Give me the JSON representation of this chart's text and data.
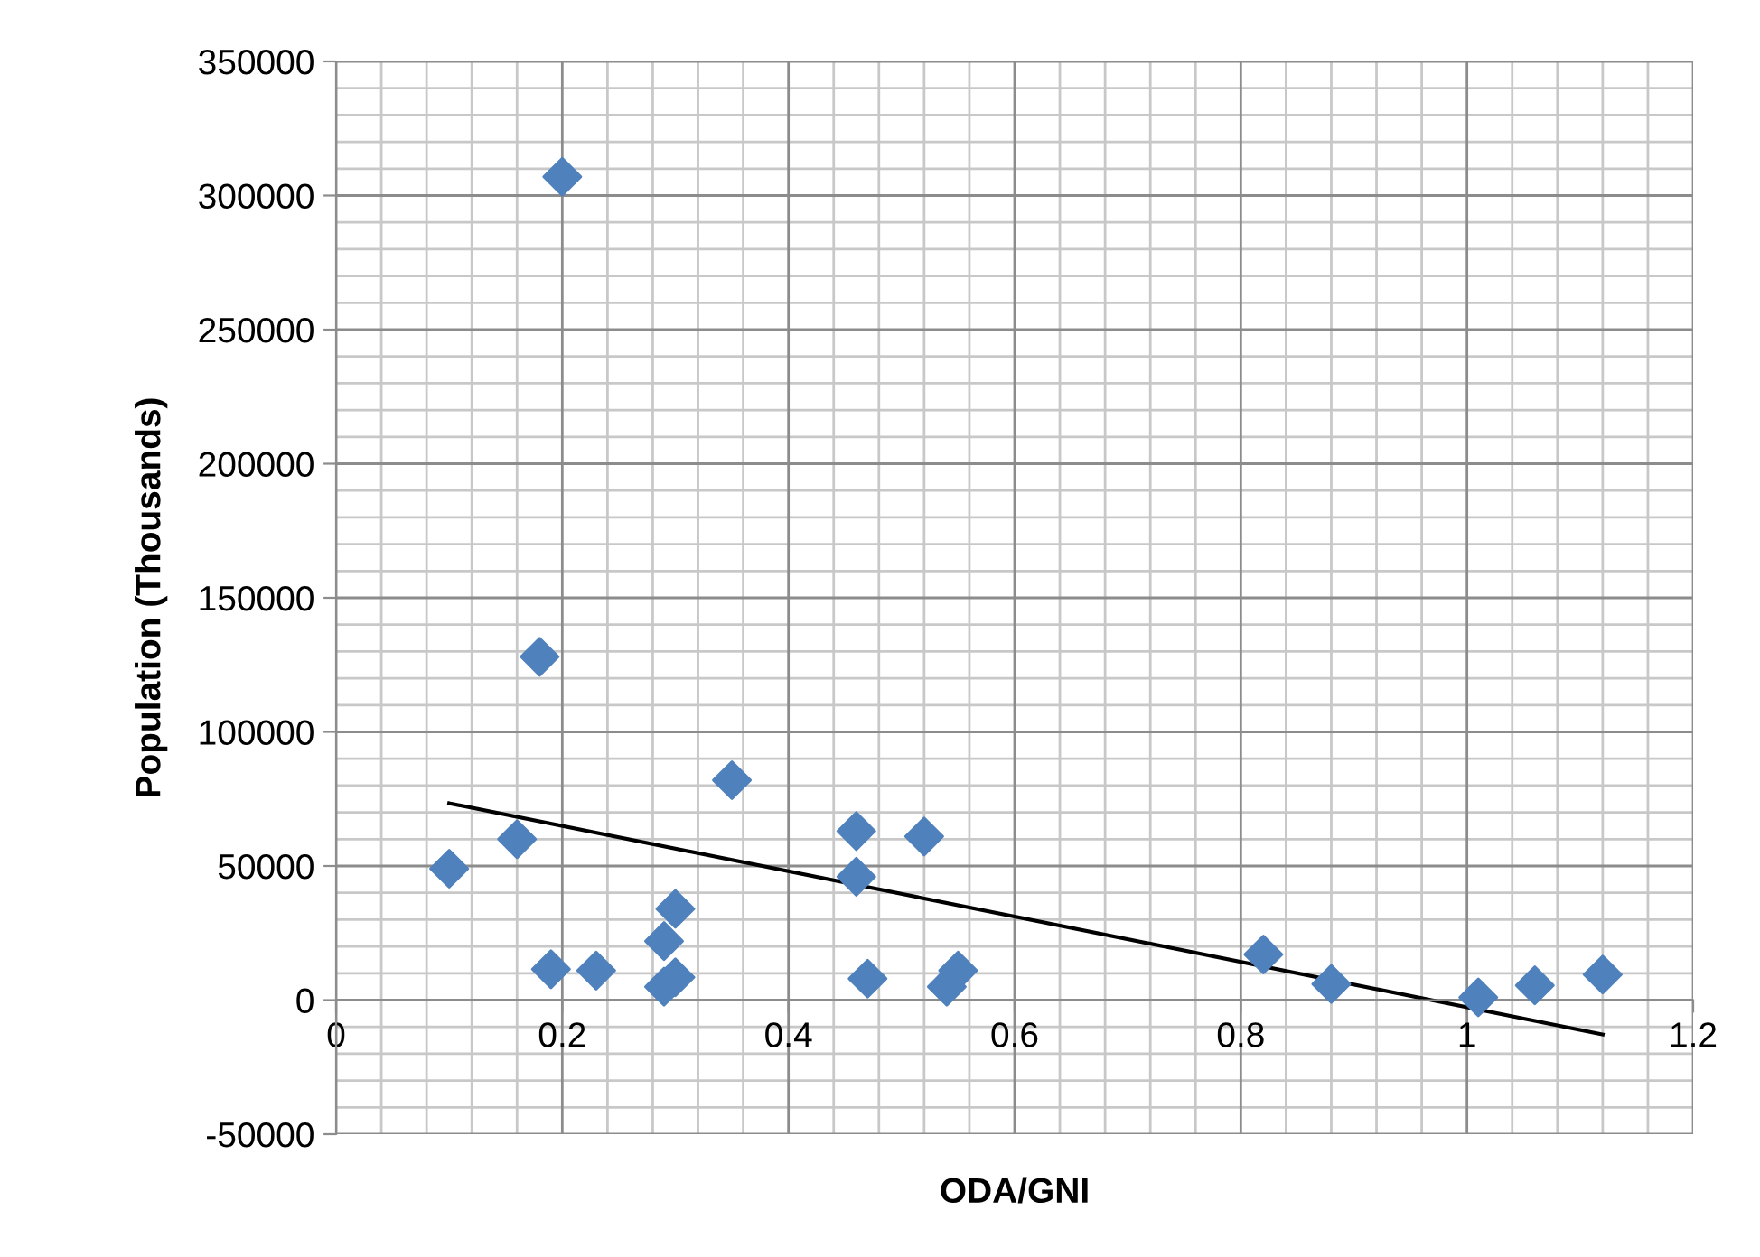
{
  "chart_data": {
    "type": "scatter",
    "xlabel": "ODA/GNI",
    "ylabel": "Population (Thousands)",
    "xlim": [
      0,
      1.2
    ],
    "xticks": [
      0,
      0.2,
      0.4,
      0.6,
      0.8,
      1,
      1.2
    ],
    "ylim": [
      -50000,
      350000
    ],
    "yticks": [
      -50000,
      0,
      50000,
      100000,
      150000,
      200000,
      250000,
      300000,
      350000
    ],
    "grid": true,
    "legend": false,
    "marker": "diamond",
    "series": [
      {
        "color": "#4f81bd",
        "x": [
          0.1,
          0.16,
          0.18,
          0.2,
          0.19,
          0.23,
          0.29,
          0.3,
          0.29,
          0.3,
          0.35,
          0.46,
          0.46,
          0.47,
          0.52,
          0.54,
          0.55,
          0.82,
          0.88,
          1.01,
          1.06,
          1.12
        ],
        "values": [
          49000,
          60000,
          128000,
          307000,
          11500,
          11000,
          22000,
          34000,
          5000,
          8500,
          82000,
          63000,
          46000,
          8000,
          61000,
          5000,
          11000,
          17000,
          6000,
          1000,
          5500,
          9500
        ]
      },
      {
        "type": "line",
        "color": "#000000",
        "marker": "none",
        "line_style": "solid",
        "x": [
          0.1,
          1.12
        ],
        "values": [
          73400,
          -12800
        ]
      }
    ]
  }
}
